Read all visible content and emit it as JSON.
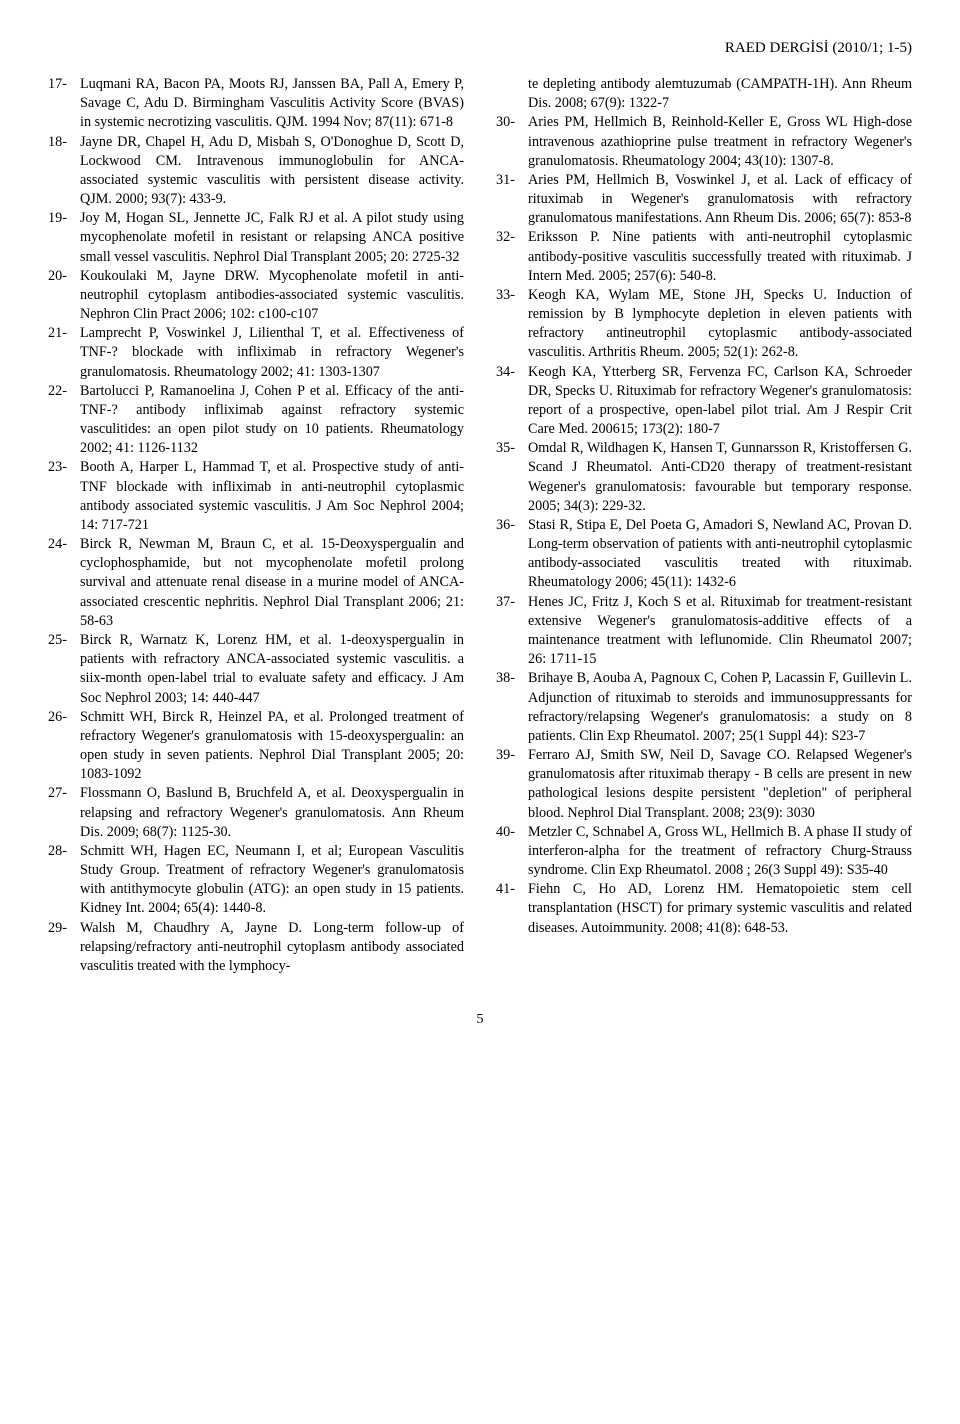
{
  "header": "RAED DERGİSİ (2010/1; 1-5)",
  "page_number": "5",
  "left": [
    {
      "n": "17-",
      "t": "Luqmani RA, Bacon PA, Moots RJ, Janssen BA, Pall A, Emery P, Savage C, Adu D. Birmingham Vasculitis Activity Score (BVAS) in systemic necrotizing vasculitis. QJM. 1994 Nov; 87(11): 671-8"
    },
    {
      "n": "18-",
      "t": "Jayne DR, Chapel H, Adu D, Misbah S, O'Donoghue D, Scott D, Lockwood CM. Intravenous immunoglobulin for ANCA-associated systemic vasculitis with persistent disease activity. QJM. 2000; 93(7): 433-9."
    },
    {
      "n": "19-",
      "t": "Joy M, Hogan SL, Jennette JC, Falk RJ et al. A pilot study using mycophenolate mofetil in resistant or relapsing ANCA positive small vessel vasculitis. Nephrol Dial Transplant 2005; 20: 2725-32"
    },
    {
      "n": "20-",
      "t": "Koukoulaki M, Jayne DRW. Mycophenolate mofetil in anti-neutrophil cytoplasm antibodies-associated systemic vasculitis. Nephron Clin Pract 2006; 102: c100-c107"
    },
    {
      "n": "21-",
      "t": "Lamprecht P, Voswinkel J, Lilienthal T, et al. Effectiveness of TNF-? blockade with infliximab in refractory Wegener's granulomatosis. Rheumatology 2002; 41: 1303-1307"
    },
    {
      "n": "22-",
      "t": "Bartolucci P, Ramanoelina J, Cohen P et al. Efficacy of the anti-TNF-? antibody infliximab against refractory systemic vasculitides: an open pilot study on 10 patients. Rheumatology 2002; 41: 1126-1132"
    },
    {
      "n": "23-",
      "t": "Booth A, Harper L, Hammad T, et al. Prospective study of anti-TNF blockade with infliximab in anti-neutrophil cytoplasmic antibody associated systemic vasculitis. J Am Soc Nephrol 2004; 14: 717-721"
    },
    {
      "n": "24-",
      "t": "Birck R, Newman M, Braun C, et al. 15-Deoxyspergualin and cyclophosphamide, but not mycophenolate mofetil prolong survival and attenuate renal disease in a murine model of ANCA-associated crescentic nephritis. Nephrol Dial Transplant 2006; 21: 58-63"
    },
    {
      "n": "25-",
      "t": "Birck R, Warnatz K, Lorenz HM, et al. 1-deoxyspergualin in patients with refractory ANCA-associated systemic vasculitis. a siix-month open-label trial to evaluate safety and efficacy. J Am Soc Nephrol 2003; 14: 440-447"
    },
    {
      "n": "26-",
      "t": "Schmitt WH, Birck R, Heinzel PA, et al. Prolonged treatment of refractory Wegener's granulomatosis with 15-deoxyspergualin: an open study in seven patients. Nephrol Dial Transplant 2005; 20: 1083-1092"
    },
    {
      "n": "27-",
      "t": "Flossmann O, Baslund B, Bruchfeld A, et al. Deoxyspergualin in relapsing and refractory Wegener's granulomatosis. Ann Rheum Dis. 2009; 68(7): 1125-30."
    },
    {
      "n": "28-",
      "t": "Schmitt WH, Hagen EC, Neumann I, et al; European Vasculitis Study Group. Treatment of refractory Wegener's granulomatosis with antithymocyte globulin (ATG): an open study in 15 patients. Kidney Int. 2004; 65(4): 1440-8."
    },
    {
      "n": "29-",
      "t": "Walsh M, Chaudhry A, Jayne D. Long-term follow-up of relapsing/refractory anti-neutrophil cytoplasm antibody associated vasculitis treated with the lymphocy-"
    }
  ],
  "right": [
    {
      "n": "",
      "t": "te depleting antibody alemtuzumab (CAMPATH-1H). Ann Rheum Dis. 2008; 67(9): 1322-7"
    },
    {
      "n": "30-",
      "t": "Aries PM, Hellmich B, Reinhold-Keller E, Gross WL High-dose intravenous azathioprine pulse treatment in refractory Wegener's granulomatosis. Rheumatology 2004; 43(10): 1307-8."
    },
    {
      "n": "31-",
      "t": "Aries PM, Hellmich B, Voswinkel J, et al. Lack of efficacy of rituximab in Wegener's granulomatosis with refractory granulomatous manifestations. Ann Rheum Dis. 2006; 65(7): 853-8"
    },
    {
      "n": "32-",
      "t": "Eriksson P. Nine patients with anti-neutrophil cytoplasmic antibody-positive vasculitis successfully treated with rituximab. J Intern Med. 2005; 257(6): 540-8."
    },
    {
      "n": "33-",
      "t": "Keogh KA, Wylam ME, Stone JH, Specks U. Induction of remission by B lymphocyte depletion in eleven patients with refractory antineutrophil cytoplasmic antibody-associated vasculitis. Arthritis Rheum. 2005; 52(1): 262-8."
    },
    {
      "n": "34-",
      "t": "Keogh KA, Ytterberg SR, Fervenza FC, Carlson KA, Schroeder DR, Specks U. Rituximab for refractory Wegener's granulomatosis: report of a prospective, open-label pilot trial. Am J Respir Crit Care Med. 200615; 173(2): 180-7"
    },
    {
      "n": "35-",
      "t": "Omdal R, Wildhagen K, Hansen T, Gunnarsson R, Kristoffersen G. Scand J Rheumatol. Anti-CD20 therapy of treatment-resistant Wegener's granulomatosis: favourable but temporary response. 2005; 34(3): 229-32."
    },
    {
      "n": "36-",
      "t": "Stasi R, Stipa E, Del Poeta G, Amadori S, Newland AC, Provan D. Long-term observation of patients with anti-neutrophil cytoplasmic antibody-associated vasculitis treated with rituximab. Rheumatology 2006; 45(11): 1432-6"
    },
    {
      "n": "37-",
      "t": "Henes JC, Fritz J, Koch S et al. Rituximab for treatment-resistant extensive Wegener's granulomatosis-additive effects of a maintenance treatment with leflunomide. Clin Rheumatol 2007; 26: 1711-15"
    },
    {
      "n": "38-",
      "t": "Brihaye B, Aouba A, Pagnoux C, Cohen P, Lacassin F, Guillevin L. Adjunction of rituximab to steroids and immunosuppressants for refractory/relapsing Wegener's granulomatosis: a study on 8 patients. Clin Exp Rheumatol. 2007; 25(1 Suppl 44): S23-7"
    },
    {
      "n": "39-",
      "t": "Ferraro AJ, Smith SW, Neil D, Savage CO. Relapsed Wegener's granulomatosis after rituximab therapy - B cells are present in new pathological lesions despite persistent \"depletion\" of peripheral blood. Nephrol Dial Transplant. 2008; 23(9): 3030"
    },
    {
      "n": "40-",
      "t": "Metzler C, Schnabel A, Gross WL, Hellmich B. A phase II study of interferon-alpha for the treatment of refractory Churg-Strauss syndrome. Clin Exp Rheumatol. 2008 ; 26(3 Suppl 49): S35-40"
    },
    {
      "n": "41-",
      "t": "Fiehn C, Ho AD, Lorenz HM. Hematopoietic stem cell transplantation (HSCT) for primary systemic vasculitis and related diseases. Autoimmunity. 2008; 41(8): 648-53."
    }
  ]
}
